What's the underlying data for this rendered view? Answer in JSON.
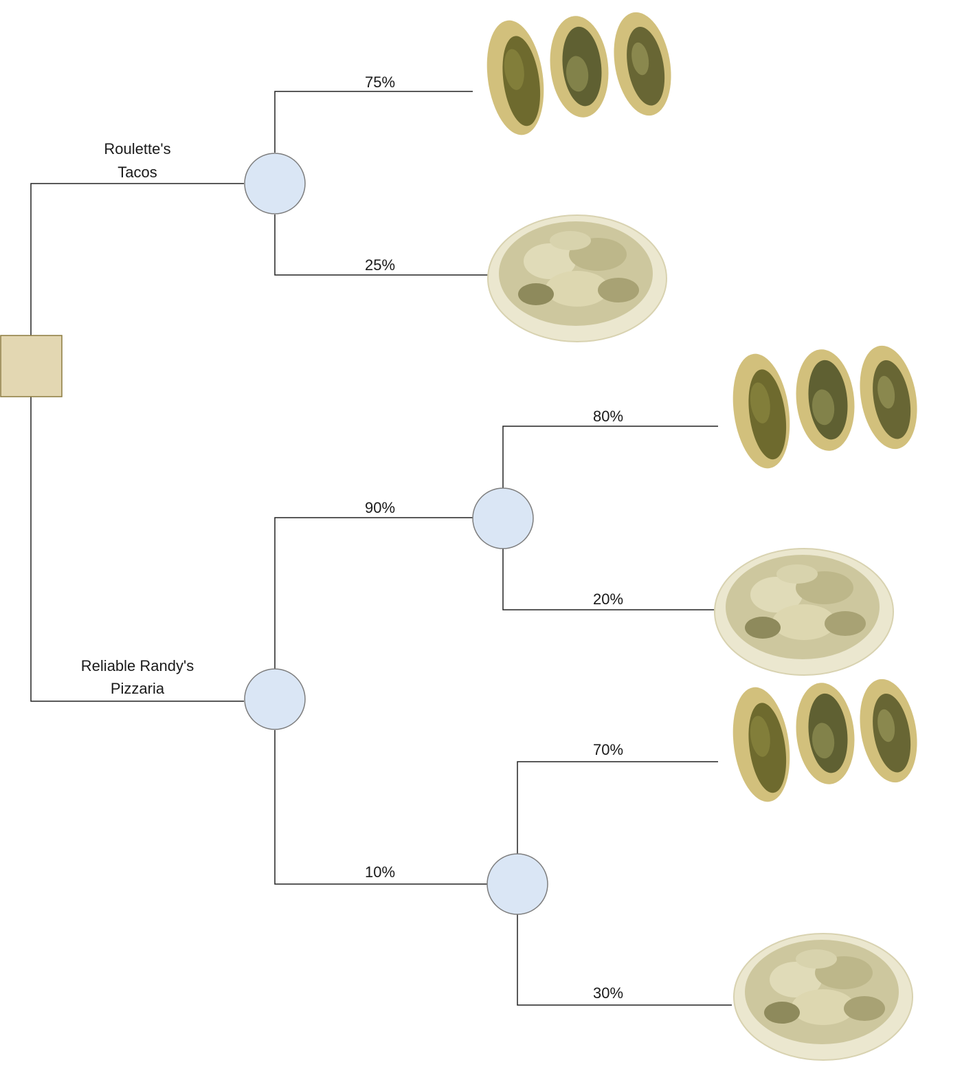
{
  "decision_node": {
    "label": ""
  },
  "options": [
    {
      "label_line1": "Roulette's",
      "label_line2": "Tacos"
    },
    {
      "label_line1": "Reliable Randy's",
      "label_line2": "Pizzaria"
    }
  ],
  "probabilities": [
    "75%",
    "25%",
    "90%",
    "10%",
    "80%",
    "20%",
    "70%",
    "30%"
  ],
  "outcomes": [
    {
      "kind": "tacos",
      "icon": "tacos-image"
    },
    {
      "kind": "salad",
      "icon": "salad-plate-image"
    },
    {
      "kind": "tacos",
      "icon": "tacos-image"
    },
    {
      "kind": "salad",
      "icon": "salad-plate-image"
    },
    {
      "kind": "tacos",
      "icon": "tacos-image"
    },
    {
      "kind": "salad",
      "icon": "salad-plate-image"
    }
  ],
  "colors": {
    "decision_fill": "#e3d7b2",
    "chance_fill": "#dae6f5",
    "taco_shell": "#d2c07c",
    "taco_filling": "#6e6a2e",
    "salad_plate": "#ebe7cf",
    "salad_leaf": "#c9c39a"
  }
}
